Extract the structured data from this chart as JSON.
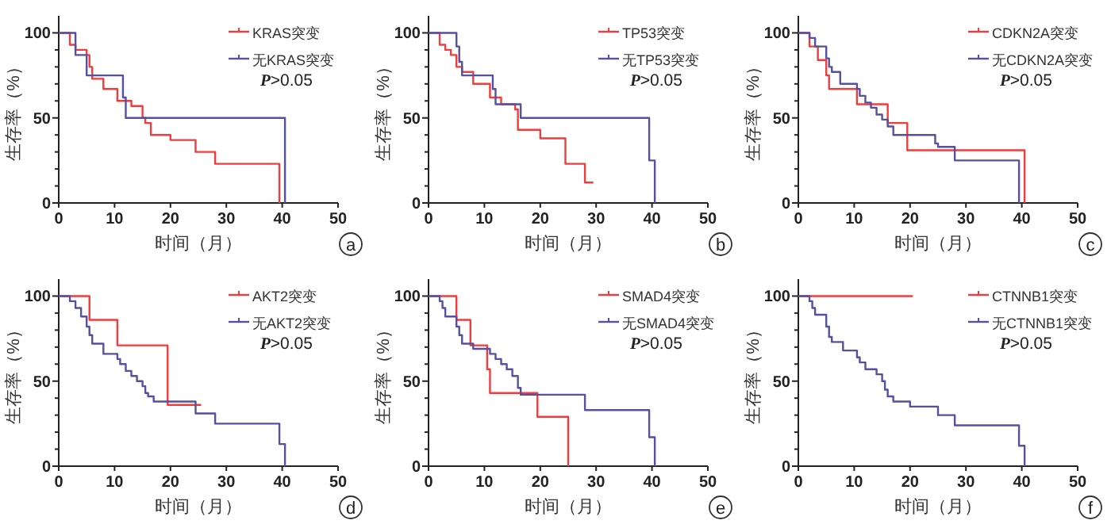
{
  "chart_data": [
    {
      "type": "step",
      "xlabel": "时间（月）",
      "ylabel": "生存率（%）",
      "xlim": [
        0,
        50
      ],
      "xticks": [
        0,
        10,
        20,
        30,
        40,
        50
      ],
      "ylim": [
        0,
        110
      ],
      "yticks": [
        0,
        {
          "value": 10,
          "label": null
        },
        {
          "value": 20,
          "label": null
        },
        {
          "value": 30,
          "label": null
        },
        {
          "value": 40,
          "label": null
        },
        50,
        {
          "value": 60,
          "label": null
        },
        {
          "value": 70,
          "label": null
        },
        {
          "value": 80,
          "label": null
        },
        {
          "value": 90,
          "label": null
        },
        100
      ],
      "legend": "top right",
      "annotations": [
        "P>0.05",
        "a"
      ],
      "series": [
        {
          "name": "KRAS突变",
          "color": "#f03c3c",
          "x": [
            0,
            2,
            3,
            5,
            5.5,
            6,
            8,
            10.5,
            13,
            15,
            15.5,
            16.5,
            20,
            24.5,
            28,
            39.5
          ],
          "values": [
            100,
            93,
            90,
            87,
            80,
            73,
            67,
            60,
            57,
            50,
            47,
            40,
            37,
            30,
            23,
            0
          ]
        },
        {
          "name": "无KRAS突变",
          "color": "#5550a0",
          "x": [
            0,
            3,
            5,
            11.5,
            12,
            40.5
          ],
          "values": [
            100,
            87,
            75,
            62,
            50,
            0
          ]
        }
      ]
    },
    {
      "type": "step",
      "xlabel": "时间（月）",
      "ylabel": "生存率（%）",
      "xlim": [
        0,
        50
      ],
      "xticks": [
        0,
        10,
        20,
        30,
        40,
        50
      ],
      "ylim": [
        0,
        110
      ],
      "yticks": [
        0,
        {
          "value": 10,
          "label": null
        },
        {
          "value": 20,
          "label": null
        },
        {
          "value": 30,
          "label": null
        },
        {
          "value": 40,
          "label": null
        },
        50,
        {
          "value": 60,
          "label": null
        },
        {
          "value": 70,
          "label": null
        },
        {
          "value": 80,
          "label": null
        },
        {
          "value": 90,
          "label": null
        },
        100
      ],
      "legend": "top right",
      "annotations": [
        "P>0.05",
        "b"
      ],
      "series": [
        {
          "name": "TP53突变",
          "color": "#f03c3c",
          "x": [
            0,
            2,
            3,
            4,
            5,
            6,
            8,
            11,
            13,
            15.5,
            16,
            20,
            24.5,
            28,
            29.5
          ],
          "values": [
            100,
            93,
            90,
            87,
            80,
            77,
            70,
            62,
            58,
            55,
            43,
            38,
            23,
            12,
            12
          ]
        },
        {
          "name": "无TP53突变",
          "color": "#5550a0",
          "x": [
            0,
            5,
            5.5,
            6,
            11.5,
            12,
            16.5,
            39.5,
            40.5
          ],
          "values": [
            100,
            92,
            83,
            75,
            67,
            58,
            50,
            25,
            0
          ]
        }
      ]
    },
    {
      "type": "step",
      "xlabel": "时间（月）",
      "ylabel": "生存率（%）",
      "xlim": [
        0,
        50
      ],
      "xticks": [
        0,
        10,
        20,
        30,
        40,
        50
      ],
      "ylim": [
        0,
        110
      ],
      "yticks": [
        0,
        {
          "value": 10,
          "label": null
        },
        {
          "value": 20,
          "label": null
        },
        {
          "value": 30,
          "label": null
        },
        {
          "value": 40,
          "label": null
        },
        50,
        {
          "value": 60,
          "label": null
        },
        {
          "value": 70,
          "label": null
        },
        {
          "value": 80,
          "label": null
        },
        {
          "value": 90,
          "label": null
        },
        100
      ],
      "legend": "top right",
      "annotations": [
        "P>0.05",
        "c"
      ],
      "series": [
        {
          "name": "CDKN2A突变",
          "color": "#f03c3c",
          "x": [
            0,
            2,
            3.5,
            5,
            5.5,
            10.5,
            16,
            19.5,
            40.5
          ],
          "values": [
            100,
            92,
            84,
            75,
            67,
            58,
            47,
            31,
            0
          ]
        },
        {
          "name": "无CDKN2A突变",
          "color": "#5550a0",
          "x": [
            0,
            2,
            3,
            5,
            5.5,
            6,
            7.5,
            10.5,
            11,
            12,
            13,
            14,
            15,
            16,
            17,
            24.5,
            25,
            28,
            39.5
          ],
          "values": [
            100,
            97,
            92,
            85,
            80,
            77,
            70,
            67,
            63,
            59,
            56,
            52,
            49,
            45,
            40,
            35,
            33,
            25,
            0
          ]
        }
      ]
    },
    {
      "type": "step",
      "xlabel": "时间（月）",
      "ylabel": "生存率（%）",
      "xlim": [
        0,
        50
      ],
      "xticks": [
        0,
        10,
        20,
        30,
        40,
        50
      ],
      "ylim": [
        0,
        110
      ],
      "yticks": [
        0,
        {
          "value": 10,
          "label": null
        },
        {
          "value": 20,
          "label": null
        },
        {
          "value": 30,
          "label": null
        },
        {
          "value": 40,
          "label": null
        },
        50,
        {
          "value": 60,
          "label": null
        },
        {
          "value": 70,
          "label": null
        },
        {
          "value": 80,
          "label": null
        },
        {
          "value": 90,
          "label": null
        },
        100
      ],
      "legend": "top right",
      "annotations": [
        "P>0.05",
        "d"
      ],
      "series": [
        {
          "name": "AKT2突变",
          "color": "#f03c3c",
          "x": [
            0,
            5.5,
            10.5,
            19.5,
            25.5
          ],
          "values": [
            100,
            86,
            71,
            36,
            36
          ]
        },
        {
          "name": "无AKT2突变",
          "color": "#5550a0",
          "x": [
            0,
            2,
            3,
            4,
            5,
            5.5,
            6,
            8,
            10.5,
            11,
            12,
            13,
            14,
            15,
            15.5,
            16,
            17,
            24.5,
            28,
            39.5,
            40.5
          ],
          "values": [
            100,
            97,
            93,
            88,
            82,
            77,
            72,
            66,
            63,
            60,
            56,
            53,
            50,
            47,
            43,
            41,
            38,
            31,
            25,
            13,
            0
          ]
        }
      ]
    },
    {
      "type": "step",
      "xlabel": "时间（月）",
      "ylabel": "生存率（%）",
      "xlim": [
        0,
        50
      ],
      "xticks": [
        0,
        10,
        20,
        30,
        40,
        50
      ],
      "ylim": [
        0,
        110
      ],
      "yticks": [
        0,
        {
          "value": 10,
          "label": null
        },
        {
          "value": 20,
          "label": null
        },
        {
          "value": 30,
          "label": null
        },
        {
          "value": 40,
          "label": null
        },
        50,
        {
          "value": 60,
          "label": null
        },
        {
          "value": 70,
          "label": null
        },
        {
          "value": 80,
          "label": null
        },
        {
          "value": 90,
          "label": null
        },
        100
      ],
      "legend": "top right",
      "annotations": [
        "P>0.05",
        "e"
      ],
      "series": [
        {
          "name": "SMAD4突变",
          "color": "#f03c3c",
          "x": [
            0,
            5,
            7.5,
            10.5,
            11,
            19.5,
            25
          ],
          "values": [
            100,
            86,
            71,
            57,
            43,
            29,
            0
          ]
        },
        {
          "name": "无SMAD4突变",
          "color": "#5550a0",
          "x": [
            0,
            2,
            2.5,
            3,
            5,
            5.5,
            6,
            8,
            11,
            12,
            13,
            14,
            15,
            16,
            16.5,
            28,
            39.5,
            40.5
          ],
          "values": [
            100,
            97,
            93,
            88,
            82,
            77,
            72,
            69,
            66,
            63,
            60,
            57,
            53,
            46,
            42,
            33,
            17,
            0
          ]
        }
      ]
    },
    {
      "type": "step",
      "xlabel": "时间（月）",
      "ylabel": "生存率（%）",
      "xlim": [
        0,
        50
      ],
      "xticks": [
        0,
        10,
        20,
        30,
        40,
        50
      ],
      "ylim": [
        0,
        110
      ],
      "yticks": [
        0,
        {
          "value": 10,
          "label": null
        },
        {
          "value": 20,
          "label": null
        },
        {
          "value": 30,
          "label": null
        },
        {
          "value": 40,
          "label": null
        },
        50,
        {
          "value": 60,
          "label": null
        },
        {
          "value": 70,
          "label": null
        },
        {
          "value": 80,
          "label": null
        },
        {
          "value": 90,
          "label": null
        },
        100
      ],
      "legend": "top right",
      "annotations": [
        "P>0.05",
        "f"
      ],
      "series": [
        {
          "name": "CTNNB1突变",
          "color": "#f03c3c",
          "x": [
            0,
            20.5
          ],
          "values": [
            100,
            100
          ]
        },
        {
          "name": "无CTNNB1突变",
          "color": "#5550a0",
          "x": [
            0,
            2,
            2.5,
            3,
            5,
            5.5,
            6,
            8,
            10.5,
            11,
            12,
            14,
            15,
            15.5,
            16,
            17,
            20,
            25,
            28,
            39.5,
            40.5
          ],
          "values": [
            100,
            97,
            93,
            89,
            82,
            76,
            73,
            68,
            64,
            61,
            57,
            54,
            50,
            45,
            41,
            38,
            35,
            30,
            24,
            12,
            0
          ]
        }
      ]
    }
  ]
}
